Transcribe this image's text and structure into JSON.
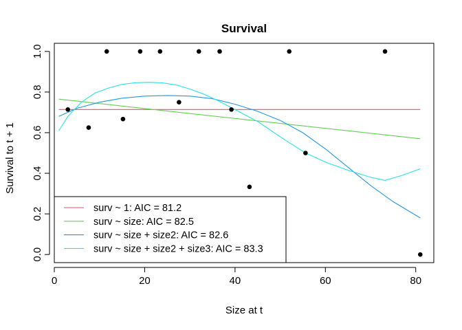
{
  "chart_data": {
    "type": "scatter",
    "title": "Survival",
    "xlabel": "Size at t",
    "ylabel": "Survival to t + 1",
    "xlim": [
      0,
      84
    ],
    "ylim": [
      -0.04,
      1.04
    ],
    "x_ticks": [
      0,
      20,
      40,
      60,
      80
    ],
    "x_tick_labels": [
      "0",
      "20",
      "40",
      "60",
      "80"
    ],
    "y_ticks": [
      0.0,
      0.2,
      0.4,
      0.6,
      0.8,
      1.0
    ],
    "y_tick_labels": [
      "0.0",
      "0.2",
      "0.4",
      "0.6",
      "0.8",
      "1.0"
    ],
    "grid": false,
    "legend_position": "bottom-left",
    "points": {
      "color": "#000000",
      "x": [
        3,
        7.6,
        11.6,
        15.2,
        19,
        23.4,
        27.6,
        32,
        36.6,
        39.2,
        43.2,
        52,
        55.6,
        73.2,
        81
      ],
      "y": [
        0.714,
        0.625,
        1.0,
        0.667,
        1.0,
        1.0,
        0.75,
        1.0,
        1.0,
        0.714,
        0.333,
        1.0,
        0.5,
        1.0,
        0.0
      ]
    },
    "series": [
      {
        "name": "surv ~ 1: AIC = 81.2",
        "color": "#DF536B",
        "x": [
          1,
          81
        ],
        "y": [
          0.714,
          0.714
        ]
      },
      {
        "name": "surv ~ size: AIC = 82.5",
        "color": "#61D04F",
        "x": [
          1,
          81
        ],
        "y": [
          0.765,
          0.57
        ]
      },
      {
        "name": "surv ~ size + size2: AIC = 82.6",
        "color": "#2297E6",
        "x": [
          1,
          5,
          10,
          15,
          20,
          25,
          30,
          35,
          40,
          45,
          50,
          55,
          60,
          65,
          70,
          75,
          81
        ],
        "y": [
          0.68,
          0.72,
          0.75,
          0.77,
          0.78,
          0.783,
          0.78,
          0.767,
          0.74,
          0.705,
          0.66,
          0.6,
          0.52,
          0.43,
          0.34,
          0.26,
          0.18
        ]
      },
      {
        "name": "surv ~ size + size2 + size3: AIC = 83.3",
        "color": "#28E2E5",
        "x": [
          1,
          3,
          6,
          9,
          12,
          15,
          18,
          21,
          24,
          27,
          30,
          33,
          36,
          39,
          42,
          45,
          48,
          51,
          55.6,
          60,
          65,
          70,
          73.2,
          77,
          81
        ],
        "y": [
          0.61,
          0.68,
          0.75,
          0.795,
          0.82,
          0.838,
          0.846,
          0.848,
          0.845,
          0.835,
          0.815,
          0.79,
          0.76,
          0.725,
          0.69,
          0.655,
          0.61,
          0.565,
          0.5,
          0.455,
          0.415,
          0.38,
          0.365,
          0.39,
          0.422
        ]
      }
    ]
  }
}
